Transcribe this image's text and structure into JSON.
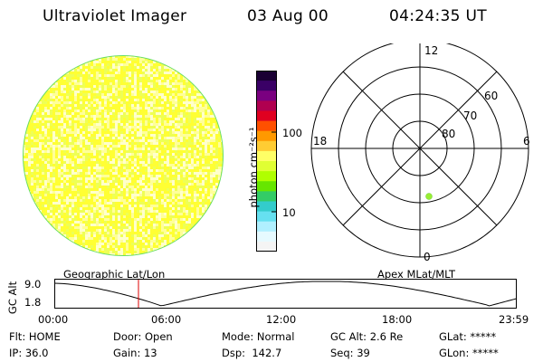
{
  "header": {
    "title": "Ultraviolet Imager",
    "date": "03 Aug 00",
    "time": "04:24:35 UT"
  },
  "colorbar": {
    "unit_label": "photon cm⁻²s⁻¹",
    "tick_labels": [
      "100",
      "10"
    ],
    "colors": [
      "#1a0033",
      "#3a0066",
      "#7a0080",
      "#b00050",
      "#e00020",
      "#ff5000",
      "#ff9900",
      "#ffcc33",
      "#ffff66",
      "#e0ff33",
      "#b0ff00",
      "#66e600",
      "#33cc66",
      "#33cccc",
      "#66e0f0",
      "#b0f0ff",
      "#e6faff",
      "#f4f4f4"
    ]
  },
  "polar": {
    "mlt_labels": [
      "12",
      "18",
      "6",
      "0"
    ],
    "lat_labels": [
      "60",
      "70",
      "80"
    ]
  },
  "timeline": {
    "left_label": "Geographic Lat/Lon",
    "right_label": "Apex MLat/MLT",
    "y_title": "GC Alt",
    "y_ticks": [
      "9.0",
      "1.8"
    ],
    "x_ticks": [
      "00:00",
      "06:00",
      "12:00",
      "18:00",
      "23:59"
    ]
  },
  "info": {
    "col1": [
      "Flt: HOME",
      "IP: 36.0"
    ],
    "col2": [
      "Door: Open",
      "Gain: 13"
    ],
    "col3": [
      "Mode: Normal",
      "Dsp:  142.7"
    ],
    "col4": [
      "GC Alt: 2.6 Re",
      "Seq: 39"
    ],
    "col5": [
      "GLat: *****",
      "GLon: *****"
    ]
  }
}
